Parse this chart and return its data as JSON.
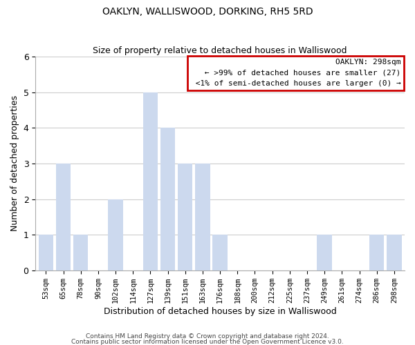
{
  "title": "OAKLYN, WALLISWOOD, DORKING, RH5 5RD",
  "subtitle": "Size of property relative to detached houses in Walliswood",
  "xlabel": "Distribution of detached houses by size in Walliswood",
  "ylabel": "Number of detached properties",
  "bar_labels": [
    "53sqm",
    "65sqm",
    "78sqm",
    "90sqm",
    "102sqm",
    "114sqm",
    "127sqm",
    "139sqm",
    "151sqm",
    "163sqm",
    "176sqm",
    "188sqm",
    "200sqm",
    "212sqm",
    "225sqm",
    "237sqm",
    "249sqm",
    "261sqm",
    "274sqm",
    "286sqm",
    "298sqm"
  ],
  "bar_values": [
    1,
    3,
    1,
    0,
    2,
    0,
    5,
    4,
    3,
    3,
    1,
    0,
    0,
    0,
    0,
    0,
    1,
    0,
    0,
    1,
    1
  ],
  "bar_color": "#ccd9ee",
  "ylim": [
    0,
    6
  ],
  "yticks": [
    0,
    1,
    2,
    3,
    4,
    5,
    6
  ],
  "legend_title": "OAKLYN: 298sqm",
  "legend_line1": "← >99% of detached houses are smaller (27)",
  "legend_line2": "<1% of semi-detached houses are larger (0) →",
  "legend_box_facecolor": "#ffffff",
  "legend_box_edgecolor": "#cc0000",
  "footnote1": "Contains HM Land Registry data © Crown copyright and database right 2024.",
  "footnote2": "Contains public sector information licensed under the Open Government Licence v3.0.",
  "grid_color": "#cccccc",
  "background_color": "#ffffff",
  "title_fontsize": 10,
  "subtitle_fontsize": 9,
  "xlabel_fontsize": 9,
  "ylabel_fontsize": 9
}
